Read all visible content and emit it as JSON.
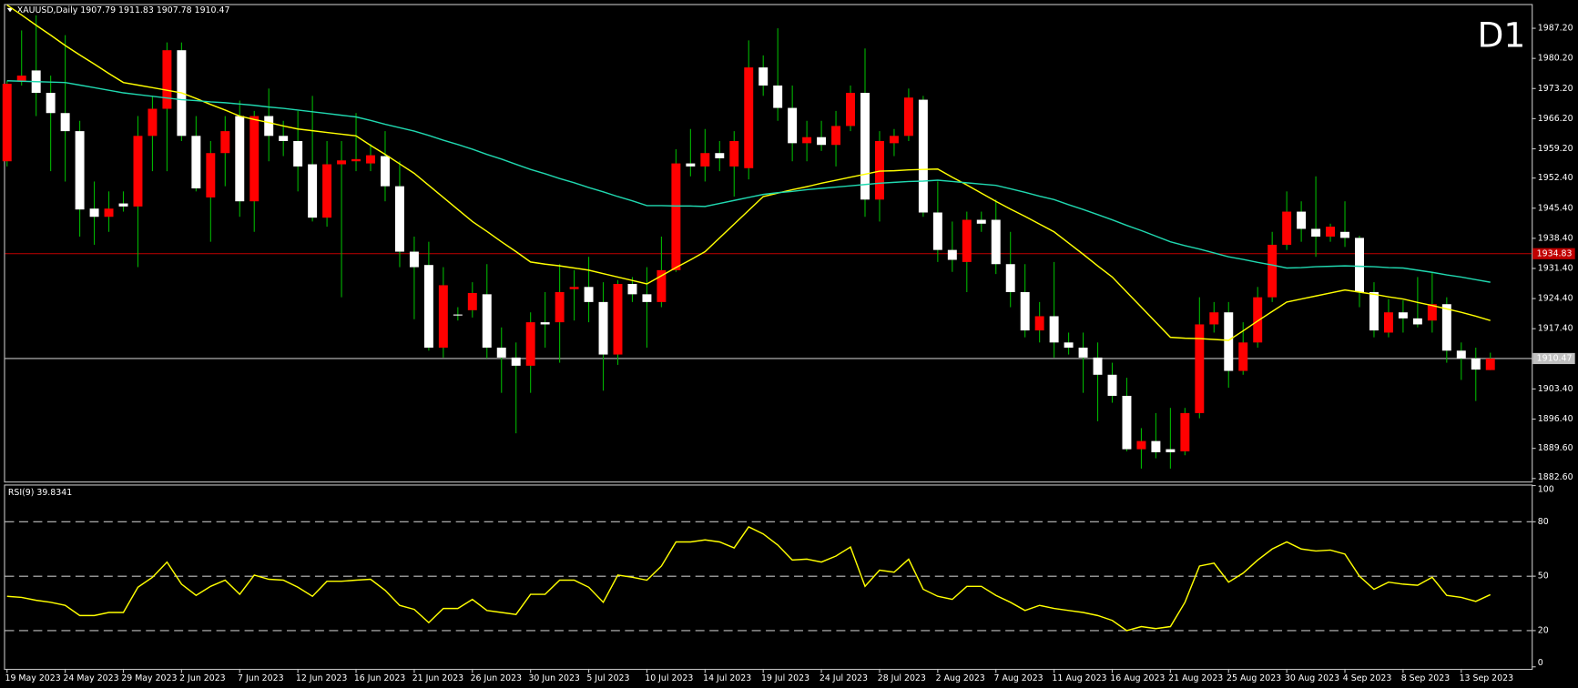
{
  "chart_data": [
    {
      "type": "candlestick",
      "title": "XAUUSD,Daily  1907.79 1911.83 1907.78 1910.47",
      "annotation": "D1",
      "annotation_color": "#ff0000",
      "up_color": "#ff0000",
      "down_color": "#ffffff",
      "wick_color": "#00b400",
      "categories": [
        "19 May 2023",
        null,
        null,
        null,
        "24 May 2023",
        null,
        null,
        null,
        "29 May 2023",
        null,
        null,
        null,
        "2 Jun 2023",
        null,
        null,
        null,
        "7 Jun 2023",
        null,
        null,
        null,
        "12 Jun 2023",
        null,
        null,
        null,
        "16 Jun 2023",
        null,
        null,
        null,
        "21 Jun 2023",
        null,
        null,
        null,
        "26 Jun 2023",
        null,
        null,
        null,
        "30 Jun 2023",
        null,
        null,
        null,
        "5 Jul 2023",
        null,
        null,
        null,
        "10 Jul 2023",
        null,
        null,
        null,
        "14 Jul 2023",
        null,
        null,
        null,
        "19 Jul 2023",
        null,
        null,
        null,
        "24 Jul 2023",
        null,
        null,
        null,
        "28 Jul 2023",
        null,
        null,
        null,
        "2 Aug 2023",
        null,
        null,
        null,
        "7 Aug 2023",
        null,
        null,
        null,
        "11 Aug 2023",
        null,
        null,
        null,
        "16 Aug 2023",
        null,
        null,
        null,
        "21 Aug 2023",
        null,
        null,
        null,
        "25 Aug 2023",
        null,
        null,
        null,
        "30 Aug 2023",
        null,
        null,
        null,
        "4 Sep 2023",
        null,
        null,
        null,
        "8 Sep 2023",
        null,
        null,
        null,
        "13 Sep 2023",
        null,
        null
      ],
      "open": [
        1956.3,
        1975.0,
        1977.4,
        1972.2,
        1967.5,
        1963.3,
        1945.3,
        1943.4,
        1946.5,
        1945.8,
        1962.2,
        1968.5,
        1982.1,
        1962.2,
        1947.9,
        1958.2,
        1966.8,
        1947.0,
        1966.8,
        1962.2,
        1961.0,
        1955.6,
        1943.2,
        1955.6,
        1956.3,
        1955.8,
        1957.5,
        1950.5,
        1935.3,
        1932.2,
        1913.0,
        1920.7,
        1921.7,
        1925.4,
        1913.0,
        1910.7,
        1908.8,
        1918.9,
        1918.9,
        1926.6,
        1927.1,
        1923.6,
        1911.4,
        1927.8,
        1925.4,
        1923.6,
        1931.0,
        1955.8,
        1955.1,
        1958.2,
        1955.1,
        1954.7,
        1978.1,
        1973.9,
        1968.7,
        1960.5,
        1961.9,
        1960.1,
        1964.5,
        1972.2,
        1947.4,
        1960.5,
        1962.2,
        1970.6,
        1944.4,
        1935.7,
        1932.9,
        1942.7,
        1942.7,
        1932.4,
        1925.9,
        1917.0,
        1920.3,
        1914.2,
        1913.0,
        1910.7,
        1906.7,
        1901.8,
        1889.4,
        1891.3,
        1889.4,
        1888.9,
        1897.8,
        1918.4,
        1921.2,
        1907.6,
        1914.2,
        1924.7,
        1936.9,
        1944.6,
        1940.6,
        1938.8,
        1939.9,
        1938.5,
        1925.9,
        1916.5,
        1921.2,
        1919.8,
        1919.3,
        1923.1,
        1912.3,
        1910.5,
        1907.79
      ],
      "high": [
        1975.0,
        1986.7,
        1990.2,
        1976.2,
        1985.6,
        1965.7,
        1951.6,
        1949.3,
        1949.3,
        1966.8,
        1971.5,
        1983.9,
        1983.9,
        1966.8,
        1961.0,
        1966.8,
        1970.4,
        1968.0,
        1973.2,
        1965.7,
        1968.0,
        1971.5,
        1961.0,
        1961.0,
        1967.5,
        1960.3,
        1963.3,
        1956.3,
        1938.8,
        1937.6,
        1931.7,
        1922.4,
        1928.2,
        1932.4,
        1917.7,
        1914.2,
        1921.2,
        1925.9,
        1932.4,
        1931.0,
        1934.1,
        1928.2,
        1928.7,
        1929.4,
        1931.7,
        1938.8,
        1959.1,
        1963.8,
        1963.8,
        1961.0,
        1963.3,
        1984.4,
        1980.9,
        1987.2,
        1973.9,
        1965.7,
        1965.7,
        1968.0,
        1973.9,
        1982.5,
        1963.3,
        1963.8,
        1973.2,
        1971.5,
        1951.6,
        1942.3,
        1944.6,
        1944.6,
        1947.4,
        1939.9,
        1932.4,
        1923.6,
        1932.9,
        1916.5,
        1916.5,
        1914.2,
        1909.5,
        1906.0,
        1894.3,
        1897.8,
        1899.0,
        1899.0,
        1924.7,
        1923.6,
        1923.6,
        1918.9,
        1927.1,
        1939.9,
        1949.3,
        1947.0,
        1952.8,
        1941.8,
        1947.0,
        1939.0,
        1928.2,
        1924.3,
        1924.0,
        1929.4,
        1930.6,
        1924.7,
        1914.2,
        1913.0,
        1911.83
      ],
      "low": [
        1955.1,
        1973.9,
        1966.8,
        1954.0,
        1951.6,
        1938.8,
        1936.9,
        1939.9,
        1944.6,
        1931.7,
        1954.0,
        1954.0,
        1961.0,
        1949.3,
        1937.6,
        1950.5,
        1943.4,
        1939.9,
        1956.3,
        1957.5,
        1949.3,
        1942.3,
        1941.1,
        1924.7,
        1954.0,
        1954.0,
        1947.0,
        1931.7,
        1919.6,
        1912.3,
        1910.7,
        1919.3,
        1920.0,
        1910.5,
        1902.5,
        1893.1,
        1902.5,
        1913.0,
        1909.5,
        1919.3,
        1918.9,
        1903.0,
        1909.0,
        1923.6,
        1913.0,
        1922.4,
        1930.6,
        1952.8,
        1951.6,
        1954.0,
        1948.1,
        1952.1,
        1971.5,
        1965.7,
        1956.3,
        1956.3,
        1958.7,
        1955.1,
        1963.3,
        1943.4,
        1942.3,
        1957.5,
        1961.0,
        1943.4,
        1932.9,
        1930.6,
        1925.9,
        1939.9,
        1930.1,
        1922.4,
        1915.4,
        1914.2,
        1910.7,
        1911.4,
        1902.5,
        1895.9,
        1900.2,
        1888.9,
        1884.9,
        1887.3,
        1884.9,
        1888.0,
        1896.6,
        1916.5,
        1903.7,
        1906.7,
        1913.0,
        1923.6,
        1935.7,
        1937.6,
        1934.1,
        1937.6,
        1936.4,
        1922.4,
        1915.4,
        1915.4,
        1916.5,
        1917.7,
        1916.5,
        1909.5,
        1905.5,
        1900.6,
        1907.78
      ],
      "close": [
        1974.3,
        1976.2,
        1972.2,
        1967.5,
        1963.3,
        1945.1,
        1943.4,
        1945.3,
        1945.8,
        1962.2,
        1968.5,
        1982.1,
        1962.2,
        1950.0,
        1958.2,
        1963.3,
        1947.0,
        1966.8,
        1962.2,
        1961.0,
        1955.1,
        1943.2,
        1955.6,
        1956.5,
        1956.8,
        1957.7,
        1950.5,
        1935.3,
        1931.7,
        1913.0,
        1927.5,
        1920.5,
        1925.7,
        1913.0,
        1910.7,
        1908.8,
        1918.9,
        1918.4,
        1925.9,
        1927.1,
        1923.6,
        1911.4,
        1927.8,
        1925.4,
        1923.6,
        1931.0,
        1955.8,
        1955.1,
        1958.2,
        1957.0,
        1961.0,
        1978.1,
        1973.9,
        1968.7,
        1960.5,
        1961.9,
        1960.1,
        1964.5,
        1972.2,
        1947.4,
        1961.0,
        1962.2,
        1971.1,
        1944.4,
        1935.7,
        1933.4,
        1942.7,
        1941.8,
        1932.4,
        1925.9,
        1917.0,
        1920.3,
        1914.2,
        1913.0,
        1910.7,
        1906.7,
        1901.8,
        1889.4,
        1891.3,
        1888.7,
        1888.7,
        1897.8,
        1918.4,
        1921.2,
        1907.6,
        1914.2,
        1924.7,
        1936.9,
        1944.6,
        1940.6,
        1938.8,
        1941.1,
        1938.5,
        1925.9,
        1917.0,
        1921.2,
        1919.8,
        1918.4,
        1923.1,
        1912.3,
        1910.5,
        1907.9,
        1910.47
      ],
      "overlays": [
        {
          "color": "#ffff00",
          "values": [
            1992.6,
            1990.3,
            1987.9,
            1985.6,
            1983.2,
            1981.0,
            1978.9,
            1976.7,
            1974.6,
            1974.0,
            1973.4,
            1972.8,
            1972.2,
            1970.9,
            1969.5,
            1968.2,
            1966.8,
            1966.0,
            1965.3,
            1964.5,
            1963.8,
            1963.4,
            1963.0,
            1962.6,
            1962.2,
            1960.0,
            1957.9,
            1955.7,
            1953.5,
            1950.7,
            1947.9,
            1945.1,
            1942.3,
            1940.0,
            1937.6,
            1935.3,
            1932.9,
            1932.4,
            1932.0,
            1931.5,
            1931.0,
            1930.2,
            1929.4,
            1928.6,
            1927.8,
            1929.7,
            1931.6,
            1933.4,
            1935.3,
            1938.5,
            1941.7,
            1944.9,
            1948.1,
            1948.9,
            1949.7,
            1950.4,
            1951.2,
            1951.9,
            1952.6,
            1953.3,
            1954.0,
            1954.1,
            1954.3,
            1954.4,
            1954.5,
            1952.6,
            1950.8,
            1948.9,
            1947.0,
            1945.2,
            1943.5,
            1941.7,
            1939.9,
            1937.3,
            1934.7,
            1932.0,
            1929.4,
            1925.9,
            1922.4,
            1918.9,
            1915.4,
            1915.2,
            1915.1,
            1914.9,
            1914.7,
            1916.9,
            1919.2,
            1921.4,
            1923.6,
            1924.3,
            1925.0,
            1925.7,
            1926.4,
            1925.9,
            1925.4,
            1924.8,
            1924.3,
            1923.5,
            1922.8,
            1922.0,
            1921.2,
            1920.3,
            1919.3
          ]
        },
        {
          "color": "#20d8b0",
          "values": [
            1975.0,
            1974.9,
            1974.8,
            1974.7,
            1974.6,
            1974.0,
            1973.4,
            1972.8,
            1972.2,
            1971.8,
            1971.4,
            1971.0,
            1970.6,
            1970.4,
            1970.1,
            1969.9,
            1969.6,
            1969.3,
            1968.9,
            1968.6,
            1968.2,
            1967.8,
            1967.4,
            1967.0,
            1966.6,
            1965.8,
            1964.9,
            1964.1,
            1963.3,
            1962.3,
            1961.2,
            1960.2,
            1959.1,
            1957.9,
            1956.8,
            1955.6,
            1954.4,
            1953.4,
            1952.3,
            1951.3,
            1950.2,
            1949.2,
            1948.1,
            1947.1,
            1946.0,
            1946.0,
            1945.9,
            1945.9,
            1945.8,
            1946.5,
            1947.2,
            1947.9,
            1948.6,
            1949.0,
            1949.3,
            1949.7,
            1950.0,
            1950.3,
            1950.6,
            1950.9,
            1951.2,
            1951.4,
            1951.6,
            1951.7,
            1951.9,
            1951.6,
            1951.3,
            1951.0,
            1950.7,
            1949.9,
            1949.1,
            1948.2,
            1947.4,
            1946.2,
            1945.1,
            1943.9,
            1942.7,
            1941.4,
            1940.2,
            1938.9,
            1937.6,
            1936.7,
            1935.9,
            1935.0,
            1934.1,
            1933.5,
            1932.8,
            1932.2,
            1931.5,
            1931.6,
            1931.8,
            1931.9,
            1932.0,
            1931.9,
            1931.8,
            1931.6,
            1931.5,
            1931.0,
            1930.5,
            1929.9,
            1929.4,
            1928.8,
            1928.2
          ]
        }
      ],
      "hlines": [
        {
          "value": 1934.83,
          "label": "1934.83",
          "color": "#c00000"
        },
        {
          "value": 1910.47,
          "label": "1910.47",
          "color": "#c0c0c0"
        }
      ],
      "ylim": [
        1881.9,
        1992.6
      ],
      "yticks": [
        {
          "value": 1987.2,
          "label": "1987.20"
        },
        {
          "value": 1980.2,
          "label": "1980.20"
        },
        {
          "value": 1973.2,
          "label": "1973.20"
        },
        {
          "value": 1966.2,
          "label": "1966.20"
        },
        {
          "value": 1959.2,
          "label": "1959.20"
        },
        {
          "value": 1952.4,
          "label": "1952.40"
        },
        {
          "value": 1945.4,
          "label": "1945.40"
        },
        {
          "value": 1938.4,
          "label": "1938.40"
        },
        {
          "value": 1931.4,
          "label": "1931.40"
        },
        {
          "value": 1924.4,
          "label": "1924.40"
        },
        {
          "value": 1917.4,
          "label": "1917.40"
        },
        {
          "value": 1910.4,
          "label": "1910.40"
        },
        {
          "value": 1903.4,
          "label": "1903.40"
        },
        {
          "value": 1896.4,
          "label": "1896.40"
        },
        {
          "value": 1889.6,
          "label": "1889.60"
        },
        {
          "value": 1882.6,
          "label": "1882.60"
        }
      ]
    },
    {
      "type": "line",
      "title": "RSI(9) 39.8341",
      "color": "#ffff00",
      "values": [
        38.9,
        38.3,
        36.7,
        35.6,
        33.9,
        28.3,
        28.3,
        30.0,
        30.0,
        43.9,
        49.4,
        57.8,
        45.6,
        39.4,
        44.4,
        47.8,
        40.0,
        50.6,
        48.3,
        47.8,
        43.9,
        38.9,
        47.2,
        47.2,
        47.8,
        48.3,
        42.2,
        33.9,
        31.7,
        24.4,
        32.2,
        32.2,
        37.2,
        31.1,
        30.0,
        28.9,
        40.0,
        40.0,
        47.8,
        47.8,
        43.9,
        35.6,
        50.6,
        49.4,
        47.8,
        55.6,
        68.9,
        68.9,
        70.0,
        68.9,
        65.6,
        77.2,
        73.3,
        67.2,
        58.9,
        59.4,
        57.8,
        61.1,
        66.1,
        44.4,
        53.3,
        52.2,
        59.4,
        42.8,
        38.9,
        37.2,
        44.4,
        44.4,
        39.4,
        35.6,
        31.1,
        33.9,
        32.2,
        31.1,
        30.0,
        28.3,
        25.6,
        20.0,
        22.2,
        21.1,
        22.2,
        35.6,
        55.6,
        57.2,
        46.7,
        51.7,
        58.9,
        65.0,
        68.9,
        65.0,
        63.9,
        64.4,
        62.2,
        50.0,
        42.8,
        46.7,
        45.6,
        45.0,
        49.4,
        39.4,
        38.3,
        36.1,
        39.8
      ],
      "levels": [
        20,
        50,
        80
      ],
      "ylim": [
        0,
        100
      ],
      "yticks": [
        0,
        20,
        50,
        80,
        100
      ]
    }
  ]
}
